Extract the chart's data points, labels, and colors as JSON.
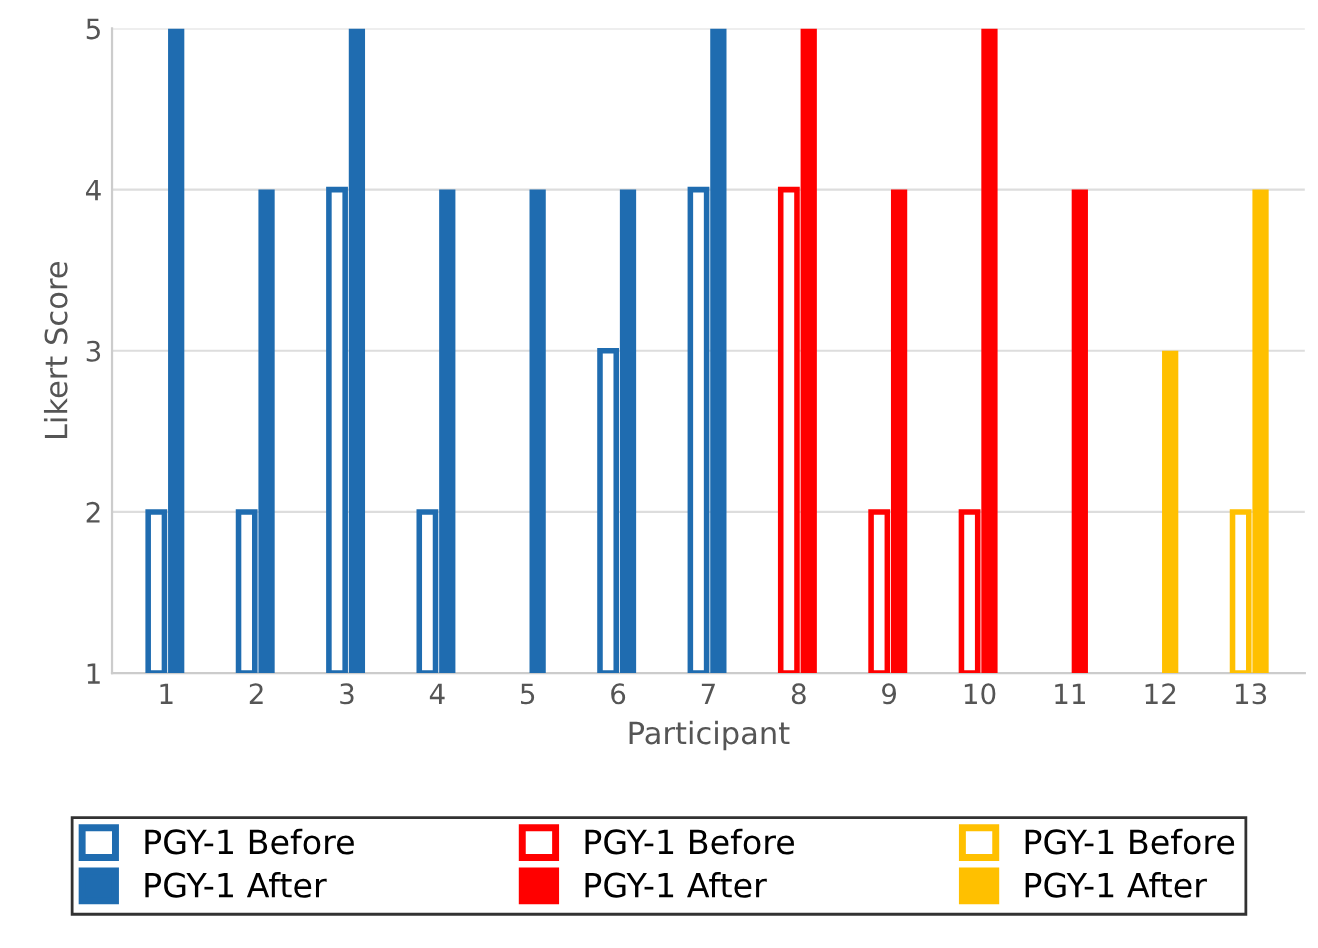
{
  "chart_data": {
    "type": "bar",
    "xlabel": "Participant",
    "ylabel": "Likert Score",
    "categories": [
      "1",
      "2",
      "3",
      "4",
      "5",
      "6",
      "7",
      "8",
      "9",
      "10",
      "11",
      "12",
      "13"
    ],
    "series": [
      {
        "name": "PGY-1 Before",
        "color": "#1f6cb0",
        "values": [
          2,
          2,
          4,
          2,
          null,
          3,
          4,
          null,
          null,
          null,
          null,
          null,
          null
        ]
      },
      {
        "name": "PGY-1 After",
        "color": "#1f6cb0",
        "values": [
          5,
          4,
          5,
          4,
          4,
          4,
          5,
          null,
          null,
          null,
          null,
          null,
          null
        ]
      },
      {
        "name": "PGY-1 Before",
        "color": "#ff0000",
        "values": [
          null,
          null,
          null,
          null,
          null,
          null,
          null,
          4,
          2,
          2,
          null,
          null,
          null
        ]
      },
      {
        "name": "PGY-1 After",
        "color": "#ff0000",
        "values": [
          null,
          null,
          null,
          null,
          null,
          null,
          null,
          5,
          4,
          5,
          4,
          null,
          null
        ]
      },
      {
        "name": "PGY-1 Before",
        "color": "#ffc000",
        "values": [
          null,
          null,
          null,
          null,
          null,
          null,
          null,
          null,
          null,
          null,
          null,
          null,
          2
        ]
      },
      {
        "name": "PGY-1 After",
        "color": "#ffc000",
        "values": [
          null,
          null,
          null,
          null,
          null,
          null,
          null,
          null,
          null,
          null,
          null,
          3,
          4
        ]
      }
    ],
    "ylim": [
      1,
      5
    ],
    "yticks": [
      1,
      2,
      3,
      4,
      5
    ],
    "grid": "y",
    "legend": "bottom"
  }
}
